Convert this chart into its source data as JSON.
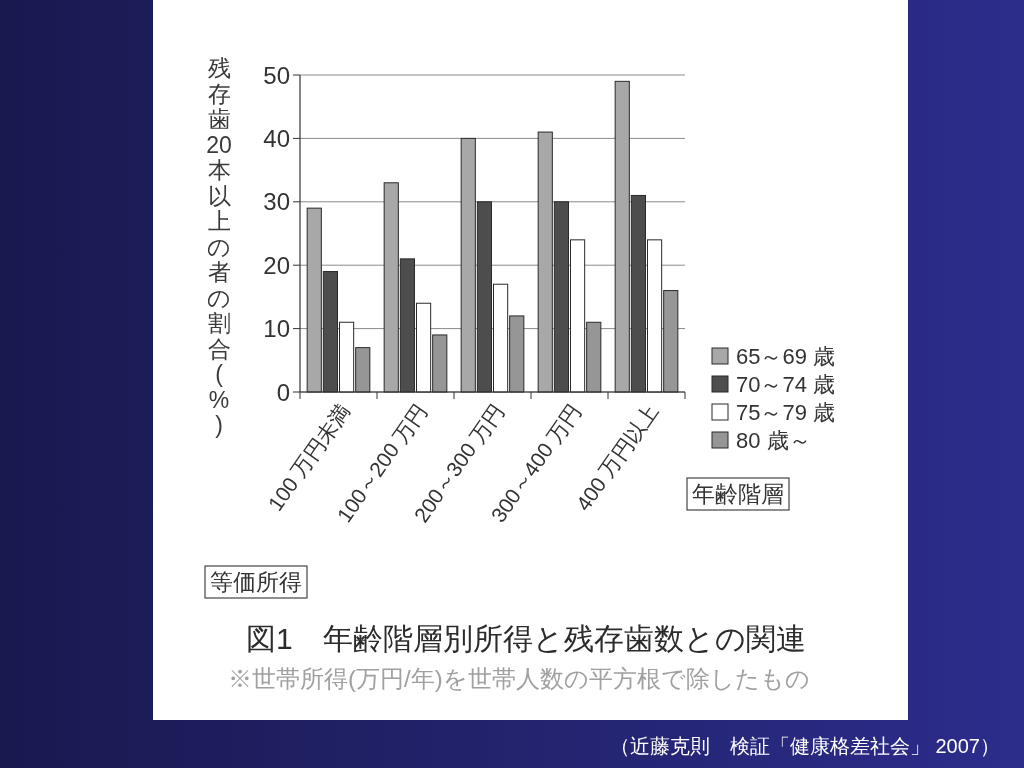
{
  "chart_data": {
    "type": "bar",
    "title": "図1　年齢階層別所得と残存歯数との関連",
    "subtitle": "※世帯所得(万円/年)を世帯人数の平方根で除したもの",
    "xlabel": "等価所得",
    "ylabel": "残存歯20本以上の者の割合(%)",
    "legend_title": "年齢階層",
    "annotations": [
      "（近藤克則　検証「健康格差社会」 2007）"
    ],
    "categories": [
      "100 万円未満",
      "100～200 万円",
      "200～300 万円",
      "300～400 万円",
      "400 万円以上"
    ],
    "series": [
      {
        "name": "65～69 歳",
        "color": "#a8a8a8",
        "values": [
          29,
          33,
          40,
          41,
          49
        ]
      },
      {
        "name": "70～74 歳",
        "color": "#4d4d4d",
        "values": [
          19,
          21,
          30,
          30,
          31
        ]
      },
      {
        "name": "75～79 歳",
        "color": "#ffffff",
        "values": [
          11,
          14,
          17,
          24,
          24
        ]
      },
      {
        "name": "80 歳～",
        "color": "#969696",
        "values": [
          7,
          9,
          12,
          11,
          16
        ]
      }
    ],
    "ylim": [
      0,
      50
    ],
    "yticks": [
      0,
      10,
      20,
      30,
      40,
      50
    ],
    "grid": "y",
    "legend": "right"
  }
}
